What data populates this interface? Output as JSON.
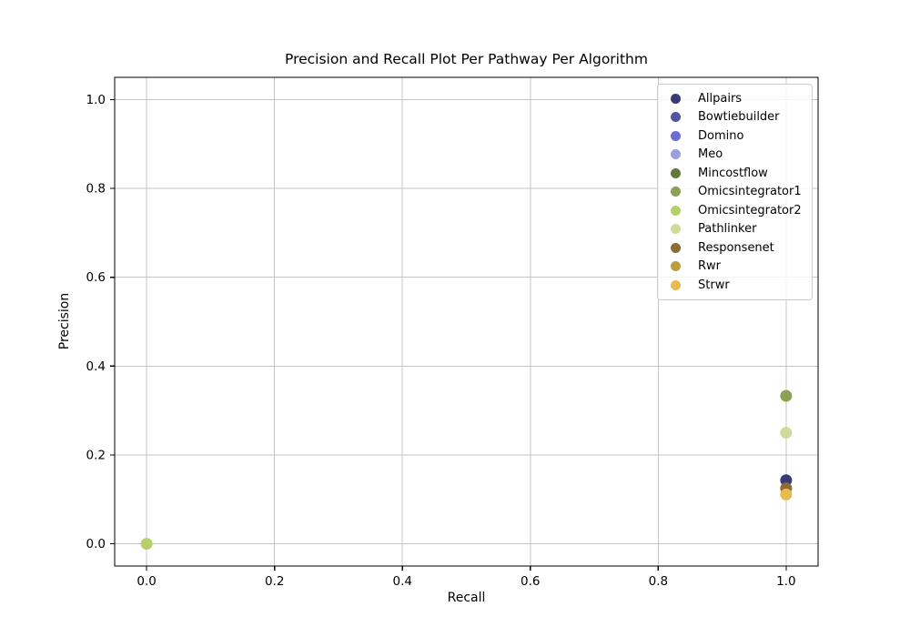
{
  "chart_data": {
    "type": "scatter",
    "title": "Precision and Recall Plot Per Pathway Per Algorithm",
    "xlabel": "Recall",
    "ylabel": "Precision",
    "xlim": [
      -0.05,
      1.05
    ],
    "ylim": [
      -0.05,
      1.05
    ],
    "xticks": [
      0.0,
      0.2,
      0.4,
      0.6,
      0.8,
      1.0
    ],
    "yticks": [
      0.0,
      0.2,
      0.4,
      0.6,
      0.8,
      1.0
    ],
    "tick_decimals": 1,
    "grid": true,
    "legend_position": "upper right",
    "marker_diameter_px": 13,
    "series": [
      {
        "name": "Allpairs",
        "color": "#393b79",
        "points": [
          {
            "x": 1.0,
            "y": 0.143
          }
        ]
      },
      {
        "name": "Bowtiebuilder",
        "color": "#5254a3",
        "points": []
      },
      {
        "name": "Domino",
        "color": "#6b6ecf",
        "points": []
      },
      {
        "name": "Meo",
        "color": "#9c9ede",
        "points": []
      },
      {
        "name": "Mincostflow",
        "color": "#637939",
        "points": []
      },
      {
        "name": "Omicsintegrator1",
        "color": "#8ca252",
        "points": [
          {
            "x": 1.0,
            "y": 0.333
          }
        ]
      },
      {
        "name": "Omicsintegrator2",
        "color": "#b5cf6b",
        "points": [
          {
            "x": 0.0,
            "y": 0.0
          }
        ]
      },
      {
        "name": "Pathlinker",
        "color": "#cedb9c",
        "points": [
          {
            "x": 1.0,
            "y": 0.25
          }
        ]
      },
      {
        "name": "Responsenet",
        "color": "#8c6d31",
        "points": [
          {
            "x": 1.0,
            "y": 0.125
          }
        ]
      },
      {
        "name": "Rwr",
        "color": "#bd9e39",
        "points": []
      },
      {
        "name": "Strwr",
        "color": "#e7ba52",
        "points": [
          {
            "x": 1.0,
            "y": 0.111
          }
        ]
      }
    ]
  },
  "colors": {
    "background": "#ffffff",
    "grid": "#c6c6c6",
    "spine": "#000000",
    "text": "#000000",
    "legend_border": "#cccccc",
    "legend_background": "rgba(255,255,255,0.8)"
  }
}
